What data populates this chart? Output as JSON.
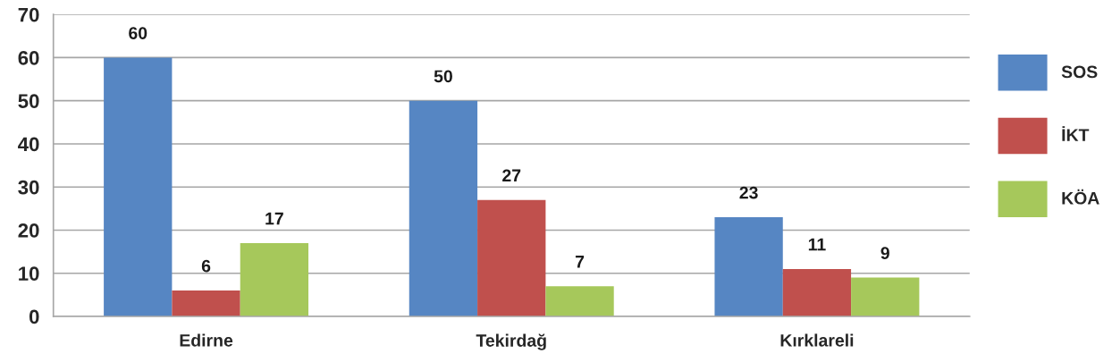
{
  "chart_data": {
    "type": "bar",
    "categories": [
      "Edirne",
      "Tekirdağ",
      "Kırklareli"
    ],
    "series": [
      {
        "name": "SOS",
        "color": "#5686c3",
        "values": [
          60,
          50,
          23
        ]
      },
      {
        "name": "İKT",
        "color": "#c0504d",
        "values": [
          6,
          27,
          11
        ]
      },
      {
        "name": "KÖA",
        "color": "#a6c85b",
        "values": [
          17,
          7,
          9
        ]
      }
    ],
    "ylim": [
      0,
      70
    ],
    "yticks": [
      0,
      10,
      20,
      30,
      40,
      50,
      60,
      70
    ],
    "grid": "y",
    "legend": "right",
    "data_labels": true
  }
}
